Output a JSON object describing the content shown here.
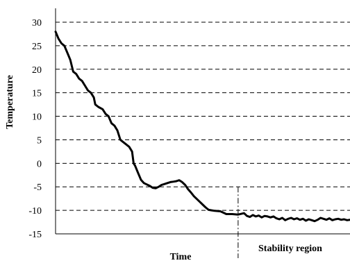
{
  "chart_data": {
    "type": "line",
    "title": "",
    "xlabel": "Time",
    "ylabel": "Temperature",
    "ylim": [
      -15,
      30
    ],
    "yticks": [
      "30",
      "25",
      "20",
      "15",
      "10",
      "5",
      "0",
      "-5",
      "-10",
      "-15"
    ],
    "grid": "horizontal dashed",
    "legend": "none",
    "xlim": [
      0,
      100
    ],
    "annotation": {
      "label": "Stability region",
      "x": 62,
      "style": "dash-dot vertical line"
    },
    "series": [
      {
        "color": "#000000",
        "points": [
          [
            0,
            28
          ],
          [
            1,
            26.5
          ],
          [
            2,
            25.5
          ],
          [
            3,
            25
          ],
          [
            4,
            23.5
          ],
          [
            5,
            22
          ],
          [
            6,
            19.5
          ],
          [
            7,
            19
          ],
          [
            8,
            18
          ],
          [
            9,
            17.5
          ],
          [
            10,
            16.5
          ],
          [
            11,
            15.5
          ],
          [
            12,
            15
          ],
          [
            13,
            14
          ],
          [
            13.5,
            12.5
          ],
          [
            14.5,
            12
          ],
          [
            16,
            11.5
          ],
          [
            17,
            10.5
          ],
          [
            18,
            10
          ],
          [
            19,
            8.5
          ],
          [
            20,
            8
          ],
          [
            21,
            7
          ],
          [
            22,
            5
          ],
          [
            23,
            4.5
          ],
          [
            24,
            4
          ],
          [
            25,
            3.5
          ],
          [
            26,
            2.5
          ],
          [
            26.5,
            0
          ],
          [
            27,
            -0.5
          ],
          [
            28,
            -2
          ],
          [
            29,
            -3.5
          ],
          [
            30,
            -4.2
          ],
          [
            31,
            -4.5
          ],
          [
            32,
            -4.8
          ],
          [
            33,
            -5.2
          ],
          [
            34,
            -5.3
          ],
          [
            35,
            -5
          ],
          [
            36,
            -4.6
          ],
          [
            37,
            -4.4
          ],
          [
            38,
            -4.2
          ],
          [
            39,
            -4
          ],
          [
            40,
            -3.9
          ],
          [
            41,
            -3.8
          ],
          [
            42,
            -3.6
          ],
          [
            43,
            -4
          ],
          [
            44,
            -4.6
          ],
          [
            45,
            -5.5
          ],
          [
            46,
            -6.2
          ],
          [
            47,
            -7
          ],
          [
            48,
            -7.6
          ],
          [
            49,
            -8.2
          ],
          [
            50,
            -8.8
          ],
          [
            51,
            -9.4
          ],
          [
            52,
            -9.9
          ],
          [
            53,
            -10
          ],
          [
            54,
            -10.1
          ],
          [
            56,
            -10.2
          ],
          [
            57,
            -10.5
          ],
          [
            58,
            -10.8
          ],
          [
            60,
            -10.8
          ],
          [
            62,
            -10.9
          ],
          [
            64,
            -10.6
          ],
          [
            65,
            -11.2
          ],
          [
            66,
            -11.4
          ],
          [
            67,
            -11
          ],
          [
            68,
            -11.3
          ],
          [
            69,
            -11.1
          ],
          [
            70,
            -11.5
          ],
          [
            71,
            -11.2
          ],
          [
            72,
            -11.3
          ],
          [
            73,
            -11.5
          ],
          [
            74,
            -11.3
          ],
          [
            75,
            -11.7
          ],
          [
            76,
            -11.9
          ],
          [
            77,
            -11.6
          ],
          [
            78,
            -12.1
          ],
          [
            79,
            -11.8
          ],
          [
            80,
            -11.6
          ],
          [
            81,
            -11.9
          ],
          [
            82,
            -11.7
          ],
          [
            83,
            -12
          ],
          [
            84,
            -11.8
          ],
          [
            85,
            -12.2
          ],
          [
            86,
            -11.9
          ],
          [
            87,
            -12.1
          ],
          [
            88,
            -12.3
          ],
          [
            89,
            -12
          ],
          [
            90,
            -11.6
          ],
          [
            91,
            -11.8
          ],
          [
            92,
            -12
          ],
          [
            93,
            -11.7
          ],
          [
            94,
            -12.1
          ],
          [
            95,
            -11.9
          ],
          [
            96,
            -11.8
          ],
          [
            97,
            -12
          ],
          [
            98,
            -11.9
          ],
          [
            99,
            -12.1
          ],
          [
            100,
            -12
          ]
        ]
      }
    ]
  }
}
